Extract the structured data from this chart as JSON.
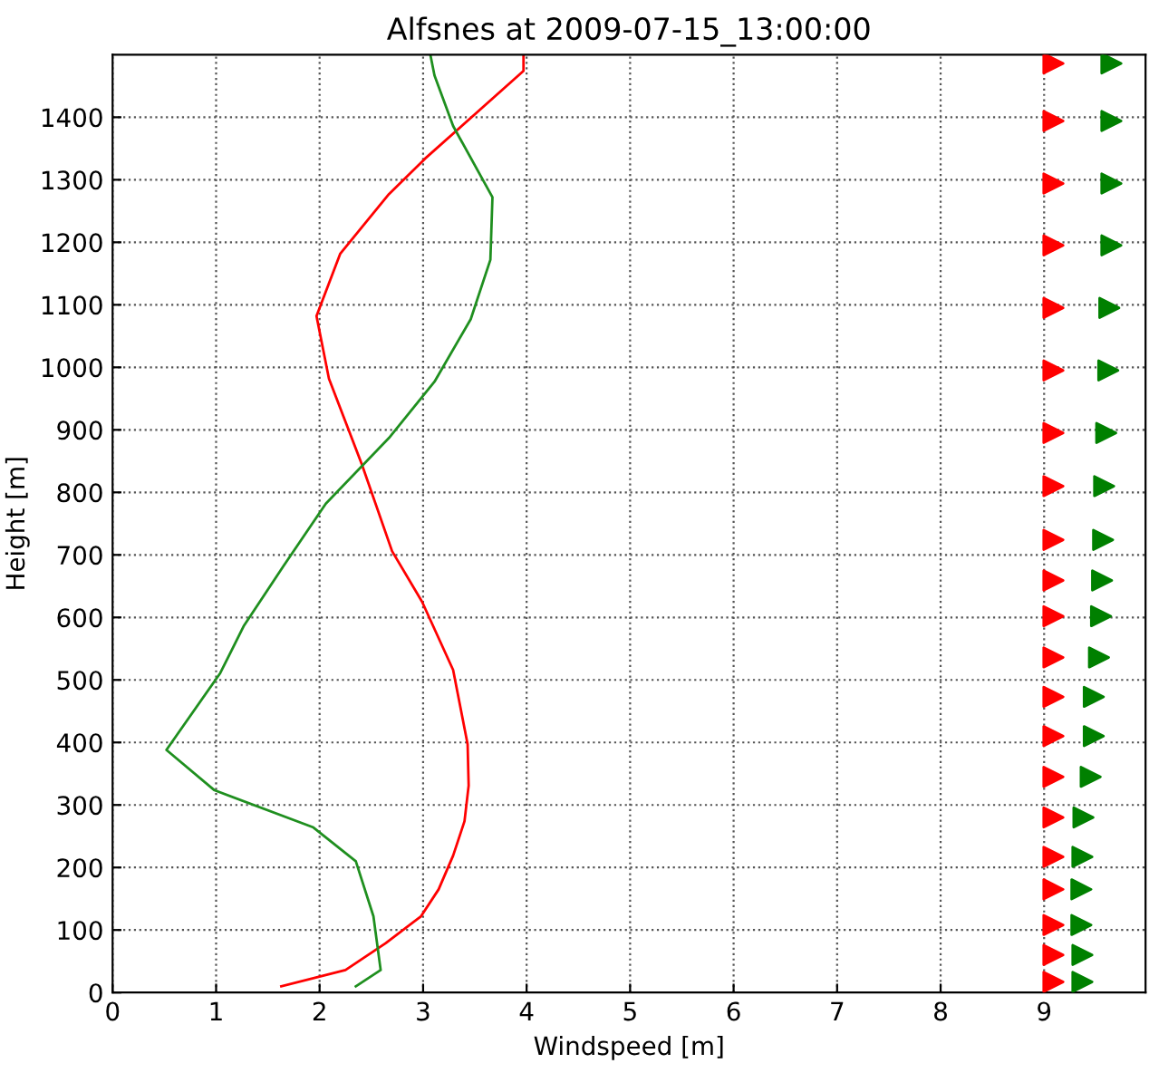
{
  "chart_data": {
    "type": "line",
    "title": "Alfsnes at 2009-07-15_13:00:00",
    "xlabel": "Windspeed [m]",
    "ylabel": "Height [m]",
    "xlim": [
      0,
      9.98
    ],
    "xticks": [
      0,
      1,
      2,
      3,
      4,
      5,
      6,
      7,
      8,
      9
    ],
    "ylim": [
      0,
      1500
    ],
    "yticks": [
      0,
      100,
      200,
      300,
      400,
      500,
      600,
      700,
      800,
      900,
      1000,
      1100,
      1200,
      1300,
      1400
    ],
    "grid": true,
    "line_style": "solid",
    "series": [
      {
        "color": "#ff0000",
        "x": [
          1.63,
          2.25,
          2.64,
          2.98,
          3.15,
          3.29,
          3.4,
          3.44,
          3.43,
          3.29,
          2.99,
          2.7,
          2.41,
          2.09,
          1.97,
          2.2,
          2.67,
          3.02,
          3.97,
          3.97
        ],
        "values": [
          10,
          36,
          79,
          122,
          165,
          219,
          274,
          331,
          397,
          516,
          625,
          706,
          844,
          982,
          1082,
          1182,
          1277,
          1334,
          1474,
          1498
        ]
      },
      {
        "color": "#1f8f1f",
        "x": [
          2.35,
          2.59,
          2.52,
          2.35,
          1.94,
          0.98,
          0.52,
          1.04,
          1.27,
          1.65,
          2.06,
          2.67,
          3.11,
          3.46,
          3.65,
          3.67,
          3.29,
          3.11,
          3.07
        ],
        "values": [
          10,
          36,
          122,
          210,
          264,
          324,
          388,
          511,
          587,
          682,
          782,
          887,
          977,
          1077,
          1172,
          1272,
          1386,
          1467,
          1500
        ]
      },
      {
        "type": "scatter",
        "marker": "triangle",
        "color": "#ff0000",
        "x": [
          9.09,
          9.09,
          9.09,
          9.09,
          9.09,
          9.09,
          9.09,
          9.09,
          9.09,
          9.09,
          9.09,
          9.09,
          9.09,
          9.09,
          9.09,
          9.09,
          9.09,
          9.09,
          9.09,
          9.09,
          9.09
        ],
        "values": [
          1486,
          1394,
          1294,
          1195,
          1095,
          995,
          895,
          810,
          724,
          659,
          602,
          536,
          473,
          410,
          345,
          280,
          217,
          165,
          108,
          60,
          17
        ]
      },
      {
        "type": "scatter",
        "marker": "triangle",
        "color": "#008000",
        "x": [
          9.65,
          9.65,
          9.65,
          9.65,
          9.63,
          9.62,
          9.6,
          9.58,
          9.57,
          9.56,
          9.55,
          9.53,
          9.48,
          9.48,
          9.45,
          9.38,
          9.37,
          9.36,
          9.36,
          9.37,
          9.37
        ],
        "values": [
          1486,
          1394,
          1294,
          1195,
          1095,
          995,
          895,
          810,
          724,
          659,
          602,
          536,
          473,
          410,
          345,
          280,
          217,
          165,
          108,
          60,
          17
        ]
      }
    ]
  }
}
